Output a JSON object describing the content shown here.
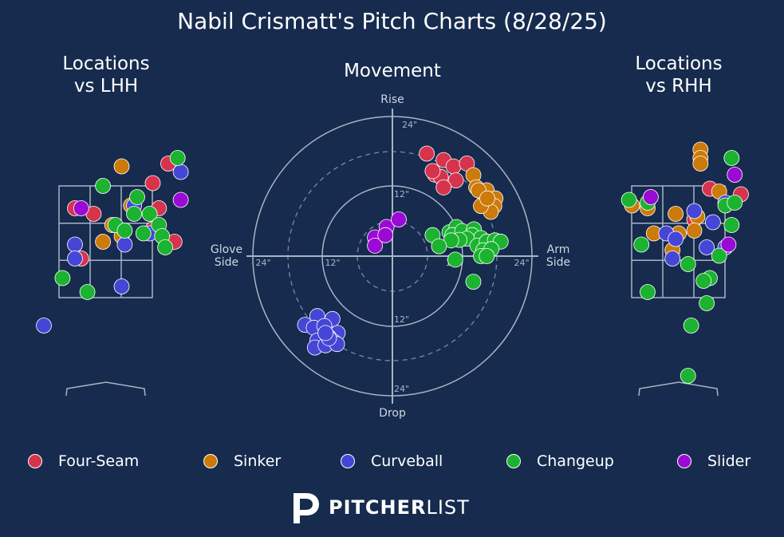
{
  "title": "Nabil Crismatt's Pitch Charts (8/28/25)",
  "panels": {
    "left_title": "Locations\nvs LHH",
    "middle_title": "Movement",
    "right_title": "Locations\nvs RHH"
  },
  "movement_axes": {
    "top": "Rise",
    "bottom": "Drop",
    "left": "Glove\nSide",
    "right": "Arm\nSide",
    "ring_labels": [
      "24\"",
      "12\"",
      "12\"",
      "24\"",
      "24\"",
      "12\"",
      "12\"",
      "24\""
    ]
  },
  "legend": [
    {
      "label": "Four-Seam",
      "color": "#d6334d"
    },
    {
      "label": "Sinker",
      "color": "#cc7a0a"
    },
    {
      "label": "Curveball",
      "color": "#4646d6"
    },
    {
      "label": "Changeup",
      "color": "#1bb32f"
    },
    {
      "label": "Slider",
      "color": "#9a0ad4"
    }
  ],
  "logo": {
    "bold": "PITCHER",
    "light": "LIST"
  },
  "chart_data": [
    {
      "type": "scatter",
      "title": "Locations vs LHH",
      "series": [
        {
          "name": "Four-Seam",
          "color": "#d6334d",
          "points": [
            [
              2.0,
              2.8
            ],
            [
              1.5,
              2.1
            ],
            [
              -1.0,
              1.2
            ],
            [
              -0.4,
              1.0
            ],
            [
              1.7,
              1.2
            ],
            [
              1.5,
              0.45
            ],
            [
              2.2,
              0.0
            ],
            [
              -0.8,
              -0.6
            ]
          ]
        },
        {
          "name": "Sinker",
          "color": "#cc7a0a",
          "points": [
            [
              0.5,
              2.7
            ],
            [
              0.8,
              1.3
            ],
            [
              0.2,
              0.6
            ],
            [
              -0.1,
              0.0
            ],
            [
              0.5,
              0.2
            ]
          ]
        },
        {
          "name": "Curveball",
          "color": "#4646d6",
          "points": [
            [
              2.4,
              2.5
            ],
            [
              0.9,
              1.3
            ],
            [
              1.4,
              0.3
            ],
            [
              0.6,
              -0.1
            ],
            [
              -1.0,
              -0.1
            ],
            [
              -1.0,
              -0.6
            ],
            [
              0.5,
              -1.6
            ],
            [
              -2.0,
              -3.0
            ]
          ]
        },
        {
          "name": "Changeup",
          "color": "#1bb32f",
          "points": [
            [
              2.3,
              3.0
            ],
            [
              -0.1,
              2.0
            ],
            [
              1.0,
              1.6
            ],
            [
              0.9,
              1.0
            ],
            [
              1.4,
              1.0
            ],
            [
              1.7,
              0.6
            ],
            [
              0.3,
              0.6
            ],
            [
              0.6,
              0.4
            ],
            [
              1.2,
              0.3
            ],
            [
              1.8,
              0.2
            ],
            [
              -1.4,
              -1.3
            ],
            [
              -0.6,
              -1.8
            ],
            [
              1.9,
              -0.2
            ]
          ]
        },
        {
          "name": "Slider",
          "color": "#9a0ad4",
          "points": [
            [
              -0.8,
              1.2
            ],
            [
              2.4,
              1.5
            ]
          ]
        }
      ]
    },
    {
      "type": "scatter",
      "title": "Movement",
      "series": [
        {
          "name": "Four-Seam",
          "color": "#d6334d",
          "points": [
            [
              5.9,
              17.6
            ],
            [
              8.8,
              16.5
            ],
            [
              10.5,
              15.4
            ],
            [
              12.8,
              15.9
            ],
            [
              7.3,
              14.0
            ],
            [
              8.3,
              13.6
            ],
            [
              6.9,
              14.6
            ],
            [
              10.9,
              13.0
            ],
            [
              8.8,
              11.8
            ]
          ]
        },
        {
          "name": "Sinker",
          "color": "#cc7a0a",
          "points": [
            [
              13.9,
              13.9
            ],
            [
              14.4,
              11.8
            ],
            [
              15.6,
              10.8
            ],
            [
              16.2,
              11.3
            ],
            [
              17.7,
              9.9
            ],
            [
              16.6,
              9.0
            ],
            [
              17.5,
              8.6
            ],
            [
              16.9,
              7.6
            ],
            [
              15.2,
              8.6
            ],
            [
              14.8,
              11.3
            ],
            [
              16.3,
              9.9
            ]
          ]
        },
        {
          "name": "Curveball",
          "color": "#4646d6",
          "points": [
            [
              -15.0,
              -11.8
            ],
            [
              -12.9,
              -10.3
            ],
            [
              -10.3,
              -10.8
            ],
            [
              -13.5,
              -12.3
            ],
            [
              -11.7,
              -12.0
            ],
            [
              -9.4,
              -13.2
            ],
            [
              -10.9,
              -13.9
            ],
            [
              -12.9,
              -14.5
            ],
            [
              -10.1,
              -14.7
            ],
            [
              -13.3,
              -15.7
            ],
            [
              -11.5,
              -15.3
            ],
            [
              -9.5,
              -15.1
            ],
            [
              -10.9,
              -14.1
            ],
            [
              -11.5,
              -13.2
            ]
          ]
        },
        {
          "name": "Changeup",
          "color": "#1bb32f",
          "points": [
            [
              6.9,
              3.6
            ],
            [
              9.8,
              4.1
            ],
            [
              11.0,
              5.0
            ],
            [
              10.3,
              3.6
            ],
            [
              12.0,
              4.3
            ],
            [
              14.0,
              4.6
            ],
            [
              13.7,
              3.6
            ],
            [
              15.2,
              3.1
            ],
            [
              12.8,
              3.0
            ],
            [
              11.5,
              2.8
            ],
            [
              10.1,
              2.7
            ],
            [
              8.0,
              1.7
            ],
            [
              14.6,
              1.8
            ],
            [
              16.2,
              2.5
            ],
            [
              17.6,
              2.7
            ],
            [
              18.6,
              2.5
            ],
            [
              15.6,
              1.0
            ],
            [
              17.0,
              1.2
            ],
            [
              15.2,
              0.0
            ],
            [
              16.2,
              0.0
            ],
            [
              10.8,
              -0.6
            ],
            [
              13.9,
              -4.4
            ]
          ]
        },
        {
          "name": "Slider",
          "color": "#9a0ad4",
          "points": [
            [
              -3.0,
              3.2
            ],
            [
              -3.0,
              1.8
            ],
            [
              -1.0,
              5.0
            ],
            [
              1.1,
              6.3
            ],
            [
              -1.2,
              3.6
            ]
          ]
        }
      ]
    },
    {
      "type": "scatter",
      "title": "Locations vs RHH",
      "series": [
        {
          "name": "Four-Seam",
          "color": "#d6334d",
          "points": [
            [
              1.0,
              1.9
            ],
            [
              2.0,
              1.7
            ],
            [
              0.5,
              0.8
            ]
          ]
        },
        {
          "name": "Sinker",
          "color": "#cc7a0a",
          "points": [
            [
              0.7,
              3.3
            ],
            [
              0.7,
              3.0
            ],
            [
              0.7,
              2.8
            ],
            [
              1.3,
              1.8
            ],
            [
              -1.0,
              1.2
            ],
            [
              -0.1,
              1.0
            ],
            [
              -1.5,
              1.3
            ],
            [
              0.6,
              0.9
            ],
            [
              0.5,
              0.4
            ],
            [
              -0.8,
              0.3
            ],
            [
              0.0,
              0.3
            ],
            [
              -0.2,
              -0.3
            ]
          ]
        },
        {
          "name": "Curveball",
          "color": "#4646d6",
          "points": [
            [
              1.5,
              1.4
            ],
            [
              0.5,
              1.1
            ],
            [
              1.1,
              0.7
            ],
            [
              -0.4,
              0.3
            ],
            [
              -0.1,
              0.1
            ],
            [
              0.9,
              -0.2
            ],
            [
              1.5,
              -0.2
            ],
            [
              -0.2,
              -0.6
            ]
          ]
        },
        {
          "name": "Changeup",
          "color": "#1bb32f",
          "points": [
            [
              1.7,
              3.0
            ],
            [
              -1.6,
              1.5
            ],
            [
              -1.0,
              1.4
            ],
            [
              1.5,
              1.3
            ],
            [
              1.8,
              1.4
            ],
            [
              1.7,
              0.6
            ],
            [
              -1.2,
              -0.1
            ],
            [
              1.3,
              -0.5
            ],
            [
              0.3,
              -0.8
            ],
            [
              1.0,
              -1.3
            ],
            [
              0.8,
              -1.4
            ],
            [
              -1.0,
              -1.8
            ],
            [
              0.9,
              -2.2
            ],
            [
              0.4,
              -3.0
            ],
            [
              0.3,
              -4.8
            ]
          ]
        },
        {
          "name": "Slider",
          "color": "#9a0ad4",
          "points": [
            [
              1.8,
              2.4
            ],
            [
              -0.9,
              1.6
            ],
            [
              1.6,
              -0.1
            ]
          ]
        }
      ]
    }
  ]
}
